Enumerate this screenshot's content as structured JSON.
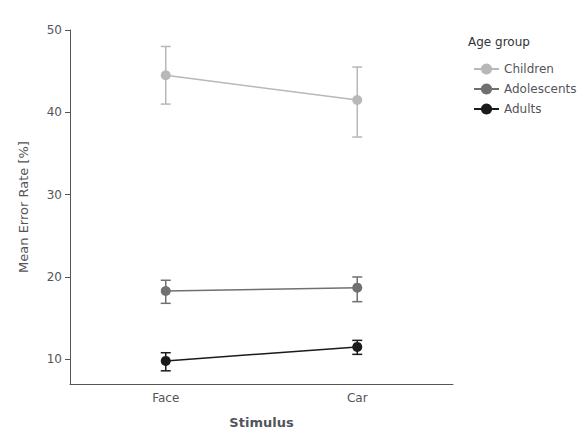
{
  "chart_data": {
    "type": "line",
    "xlabel": "Stimulus",
    "ylabel": "Mean Error Rate [%]",
    "categories": [
      "Face",
      "Car"
    ],
    "series": [
      {
        "name": "Children",
        "color": "#b8b8b8",
        "values": [
          44.5,
          41.5
        ],
        "errors_upper": [
          3.5,
          4.0
        ],
        "errors_lower": [
          3.5,
          4.5
        ]
      },
      {
        "name": "Adolescents",
        "color": "#707070",
        "values": [
          18.3,
          18.7
        ],
        "errors_upper": [
          1.3,
          1.3
        ],
        "errors_lower": [
          1.5,
          1.7
        ]
      },
      {
        "name": "Adults",
        "color": "#1a1a1a",
        "values": [
          9.8,
          11.5
        ],
        "errors_upper": [
          1.0,
          0.8
        ],
        "errors_lower": [
          1.2,
          0.9
        ]
      }
    ],
    "ylim": [
      7,
      50
    ],
    "yticks": [
      10,
      20,
      30,
      40,
      50
    ],
    "legend_title": "Age group",
    "legend": "upper right",
    "marker": "circle",
    "grid": false
  }
}
